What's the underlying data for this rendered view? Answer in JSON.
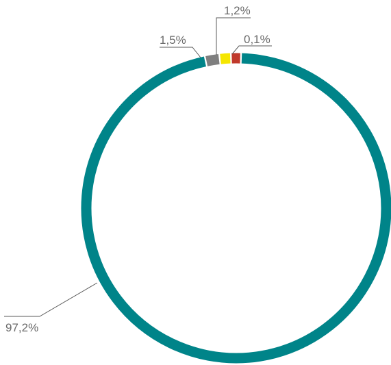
{
  "chart_data": {
    "type": "pie",
    "variant": "donut",
    "slices": [
      {
        "value": 97.2,
        "label": "97,2%",
        "color": "#008489"
      },
      {
        "value": 1.5,
        "label": "1,5%",
        "color": "#7f7f7f"
      },
      {
        "value": 1.2,
        "label": "1,2%",
        "color": "#f5e600"
      },
      {
        "value": 0.1,
        "label": "0,1%",
        "color": "#c0392b"
      }
    ]
  }
}
